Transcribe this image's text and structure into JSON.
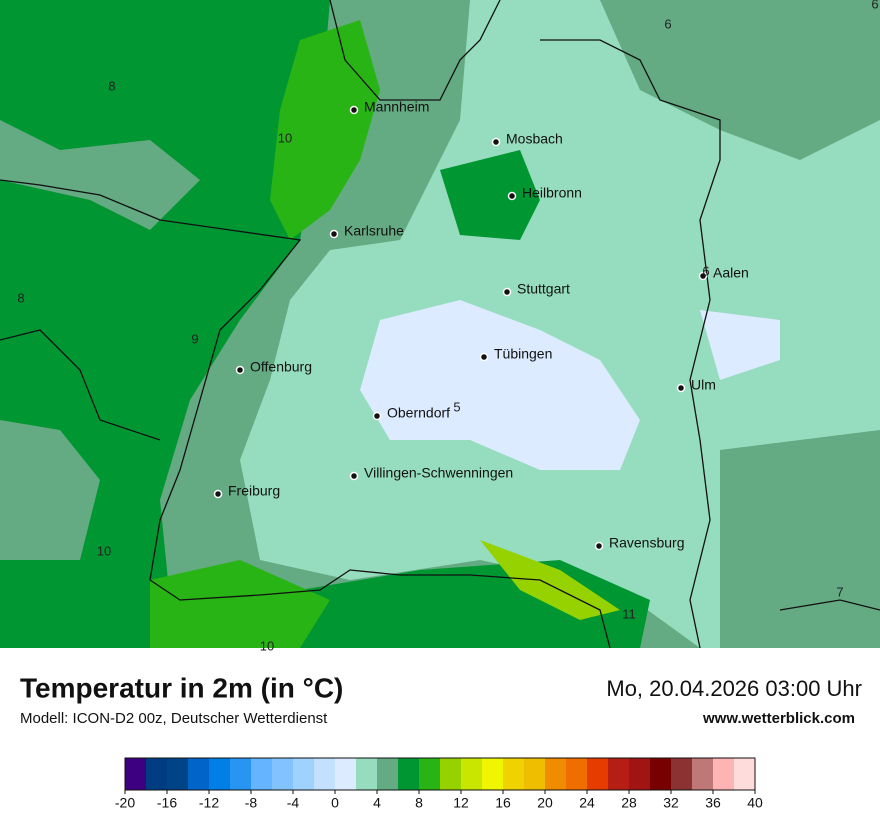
{
  "header": {
    "title": "Temperatur in 2m (in °C)",
    "subtitle": "Modell: ICON-D2 00z, Deutscher Wetterdienst",
    "date": "Mo, 20.04.2026 03:00 Uhr",
    "website": "www.wetterblick.com"
  },
  "map": {
    "cities": [
      "Mannheim",
      "Mosbach",
      "Heilbronn",
      "Karlsruhe",
      "Aalen",
      "Stuttgart",
      "Tübingen",
      "Offenburg",
      "Ulm",
      "Oberndorf",
      "Villingen-Schwenningen",
      "Freiburg",
      "Ravensburg"
    ],
    "contour_labels": [
      6,
      6,
      8,
      10,
      8,
      9,
      5,
      6,
      10,
      7,
      11,
      10
    ]
  },
  "colorbar": {
    "ticks": [
      -20,
      -16,
      -12,
      -8,
      -4,
      0,
      4,
      8,
      12,
      16,
      20,
      24,
      28,
      32,
      36,
      40
    ],
    "colors": [
      "#3c0080",
      "#003c82",
      "#004488",
      "#0064c8",
      "#0080e6",
      "#2896f0",
      "#64b4ff",
      "#82c3ff",
      "#a0d2ff",
      "#c3e1ff",
      "#dcebff",
      "#96dcbe",
      "#64aa82",
      "#009632",
      "#28b414",
      "#96d200",
      "#c8e600",
      "#f0f500",
      "#f0d200",
      "#f0be00",
      "#f08c00",
      "#f06e00",
      "#e63c00",
      "#b41e14",
      "#a01414",
      "#780000",
      "#8c3232",
      "#be7878",
      "#ffb4b4",
      "#ffdcdc"
    ]
  }
}
